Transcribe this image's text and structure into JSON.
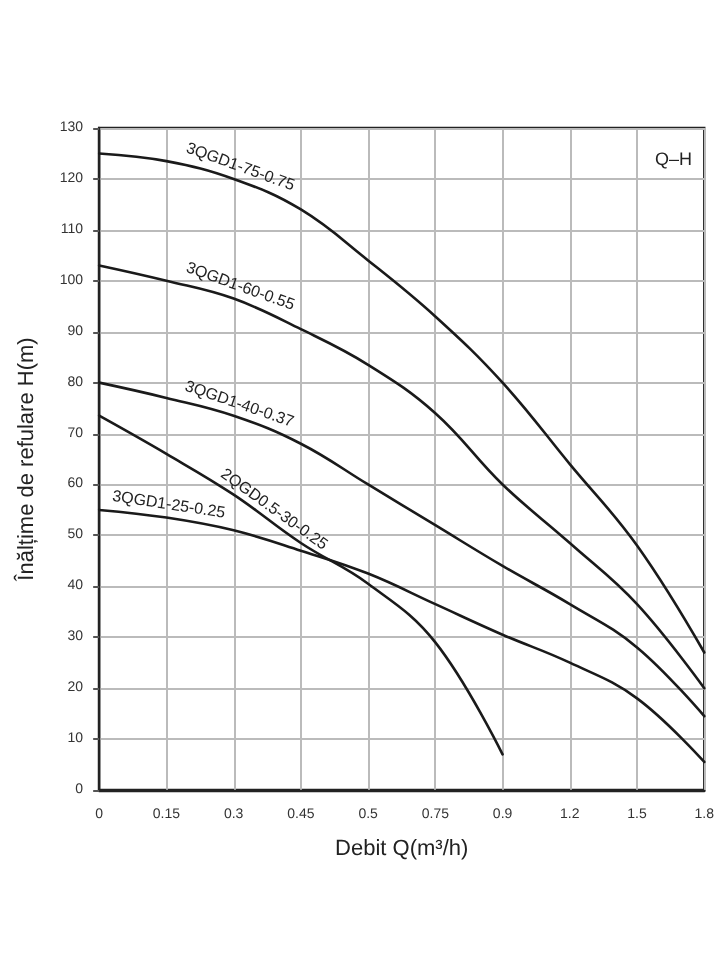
{
  "chart_data": {
    "type": "line",
    "xlabel": "Debit Q(m³/h)",
    "ylabel": "Înălțime de refulare H(m)",
    "annotations": [
      "Q–H"
    ],
    "categories": [
      "0",
      "0.15",
      "0.3",
      "0.45",
      "0.5",
      "0.75",
      "0.9",
      "1.2",
      "1.5",
      "1.8"
    ],
    "ylim": [
      0,
      130
    ],
    "yticks": [
      0,
      10,
      20,
      30,
      40,
      50,
      60,
      70,
      80,
      90,
      100,
      110,
      120,
      130
    ],
    "grid": true,
    "legend": false,
    "marker": "none",
    "line_style": "solid",
    "series": [
      {
        "name": "3QGD1-75-0.75",
        "color": "#1a1a1a",
        "values": [
          125,
          123.5,
          120,
          114,
          104,
          93,
          80,
          64,
          48,
          27
        ]
      },
      {
        "name": "3QGD1-60-0.55",
        "color": "#1a1a1a",
        "values": [
          103,
          100,
          96.5,
          90.5,
          83.5,
          74,
          60,
          48.5,
          36.5,
          20
        ]
      },
      {
        "name": "3QGD1-40-0.37",
        "color": "#1a1a1a",
        "values": [
          80,
          77,
          73.5,
          68,
          60,
          52,
          44,
          36.5,
          28,
          14.5
        ]
      },
      {
        "name": "2QGD0.5-30-0.25",
        "color": "#1a1a1a",
        "values": [
          73.5,
          66,
          58,
          48.5,
          40.5,
          29,
          7,
          null,
          null,
          null
        ]
      },
      {
        "name": "3QGD1-25-0.25",
        "color": "#1a1a1a",
        "values": [
          55,
          53.5,
          51,
          47,
          42.5,
          36.5,
          30.5,
          25,
          18,
          5.5
        ]
      }
    ]
  }
}
